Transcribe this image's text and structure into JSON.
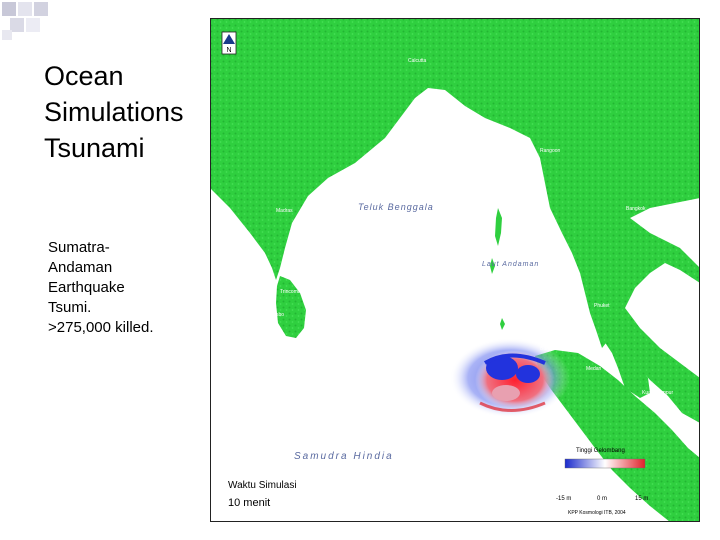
{
  "slide": {
    "title_lines": [
      "Ocean",
      "Simulations",
      "Tsunami"
    ],
    "body_lines": [
      "Sumatra-",
      "Andaman",
      "Earthquake",
      "Tsumi.",
      ">275,000 killed."
    ]
  },
  "map": {
    "labels": {
      "teluk_benggala": "Teluk Benggala",
      "laut_andaman": "Laut Andaman",
      "samudra_hindia": "Samudra Hindia",
      "city_calcutta": "Calcutta",
      "city_rangoon": "Rangoon",
      "city_madras": "Madras",
      "city_colombo": "Colombo",
      "city_banda_aceh": "Banda Aceh",
      "city_phuket": "Phuket",
      "city_medan": "Medan",
      "city_kuala_lumpur": "Kuala Lumpur",
      "city_bangkok": "Bangkok",
      "city_trincomalee": "Trincomalee"
    },
    "simulation": {
      "time_label": "Waktu Simulasi",
      "time_value": "10   menit"
    },
    "legend": {
      "title": "Tinggi Gelombang",
      "min": "-15 m",
      "mid": "0 m",
      "max": "15 m",
      "credit": "KPP Kosmologi ITB, 2004"
    },
    "north_label": "N",
    "colors": {
      "land": "#2fcf3f",
      "land_dark": "#1fa82c",
      "ocean": "#ffffff",
      "wave_positive": "#e0202a",
      "wave_negative": "#2233dd",
      "frame": "#222222"
    }
  }
}
